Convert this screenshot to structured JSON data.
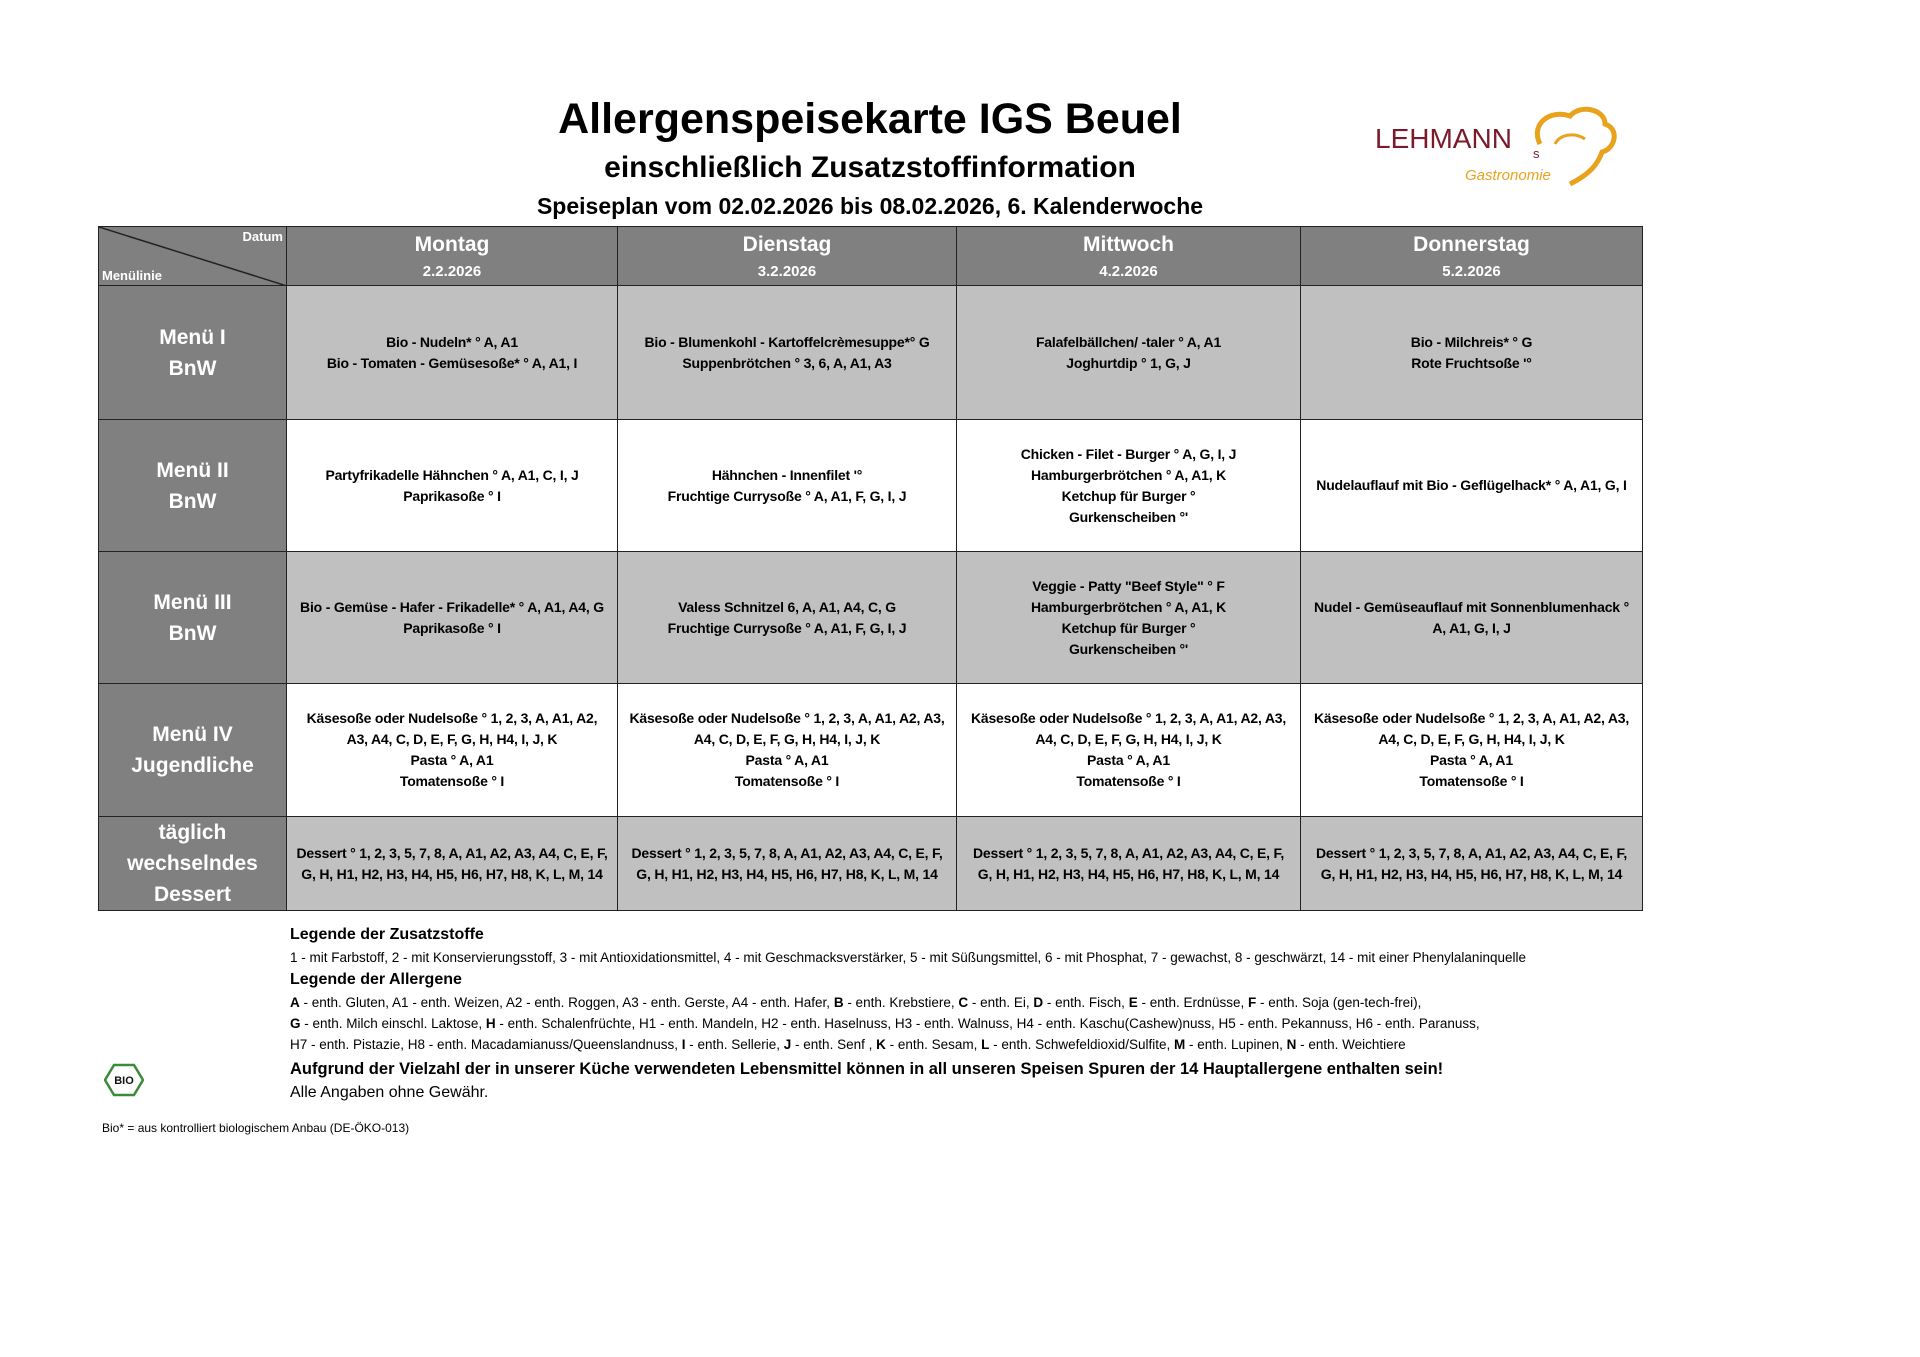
{
  "header": {
    "title": "Allergenspeisekarte IGS Beuel",
    "subtitle": "einschließlich Zusatzstoffinformation",
    "period": "Speiseplan vom 02.02.2026 bis 08.02.2026, 6. Kalenderwoche",
    "logo": {
      "text": "LEHMANN",
      "suffix": "s",
      "tagline": "Gastronomie",
      "colors": {
        "brand": "#7a1a2a",
        "accent": "#e8a21c"
      }
    }
  },
  "table": {
    "corner": {
      "top": "Datum",
      "bottom": "Menülinie"
    },
    "days": [
      {
        "name": "Montag",
        "date": "2.2.2026"
      },
      {
        "name": "Dienstag",
        "date": "3.2.2026"
      },
      {
        "name": "Mittwoch",
        "date": "4.2.2026"
      },
      {
        "name": "Donnerstag",
        "date": "5.2.2026"
      }
    ],
    "rows": [
      {
        "label": [
          "Menü I",
          "BnW"
        ],
        "cells": [
          [
            "Bio - Nudeln* ° A, A1",
            "Bio - Tomaten - Gemüsesoße* ° A, A1, I"
          ],
          [
            "Bio - Blumenkohl - Kartoffelcrèmesuppe*° G",
            "Suppenbrötchen ° 3, 6, A, A1, A3"
          ],
          [
            "Falafelbällchen/ -taler ° A, A1",
            "Joghurtdip ° 1, G, J"
          ],
          [
            "Bio - Milchreis* ° G",
            "Rote Fruchtsoße '°"
          ]
        ]
      },
      {
        "label": [
          "Menü II",
          "BnW"
        ],
        "cells": [
          [
            "Partyfrikadelle Hähnchen ° A, A1, C, I, J",
            "Paprikasoße ° I"
          ],
          [
            "Hähnchen - Innenfilet '°",
            "Fruchtige Currysoße ° A, A1, F, G, I, J"
          ],
          [
            "Chicken - Filet - Burger ° A, G, I, J",
            "Hamburgerbrötchen ° A, A1, K",
            "Ketchup für Burger °",
            "Gurkenscheiben °'"
          ],
          [
            "Nudelauflauf mit Bio - Geflügelhack* ° A, A1, G, I"
          ]
        ]
      },
      {
        "label": [
          "Menü III",
          "BnW"
        ],
        "cells": [
          [
            "Bio - Gemüse - Hafer - Frikadelle* ° A, A1, A4, G",
            "Paprikasoße ° I"
          ],
          [
            "Valess Schnitzel 6, A, A1, A4, C, G",
            "Fruchtige Currysoße ° A, A1, F, G, I, J"
          ],
          [
            "Veggie - Patty \"Beef Style\" ° F",
            "Hamburgerbrötchen ° A, A1, K",
            "Ketchup für Burger °",
            "Gurkenscheiben °'"
          ],
          [
            "Nudel - Gemüseauflauf mit Sonnenblumenhack °",
            "A, A1, G, I, J"
          ]
        ]
      },
      {
        "label": [
          "Menü IV",
          "Jugendliche"
        ],
        "cells": [
          [
            "Käsesoße oder Nudelsoße ° 1, 2, 3, A, A1, A2,",
            "A3, A4, C, D, E, F, G, H, H4, I, J, K",
            "Pasta ° A, A1",
            "Tomatensoße ° I"
          ],
          [
            "Käsesoße oder Nudelsoße ° 1, 2, 3, A, A1, A2, A3,",
            "A4, C, D, E, F, G, H, H4, I, J, K",
            "Pasta ° A, A1",
            "Tomatensoße ° I"
          ],
          [
            "Käsesoße oder Nudelsoße ° 1, 2, 3, A, A1, A2, A3,",
            "A4, C, D, E, F, G, H, H4, I, J, K",
            "Pasta ° A, A1",
            "Tomatensoße ° I"
          ],
          [
            "Käsesoße oder Nudelsoße ° 1, 2, 3, A, A1, A2, A3,",
            "A4, C, D, E, F, G, H, H4, I, J, K",
            "Pasta ° A, A1",
            "Tomatensoße ° I"
          ]
        ]
      },
      {
        "label": [
          "täglich",
          "wechselndes",
          "Dessert"
        ],
        "cells": [
          [
            "Dessert ° 1, 2, 3, 5, 7, 8, A, A1, A2, A3, A4, C, E, F,",
            "G, H, H1, H2, H3, H4, H5, H6, H7, H8, K, L, M, 14"
          ],
          [
            "Dessert ° 1, 2, 3, 5, 7, 8, A, A1, A2, A3, A4, C, E, F,",
            "G, H, H1, H2, H3, H4, H5, H6, H7, H8, K, L, M, 14"
          ],
          [
            "Dessert ° 1, 2, 3, 5, 7, 8, A, A1, A2, A3, A4, C, E, F,",
            "G, H, H1, H2, H3, H4, H5, H6, H7, H8, K, L, M, 14"
          ],
          [
            "Dessert ° 1, 2, 3, 5, 7, 8, A, A1, A2, A3, A4, C, E, F,",
            "G, H, H1, H2, H3, H4, H5, H6, H7, H8, K, L, M, 14"
          ]
        ]
      }
    ],
    "colors": {
      "header": "#808080",
      "grey_row": "#c0c0c0",
      "white_row": "#ffffff"
    }
  },
  "legend": {
    "additives_title": "Legende der Zusatzstoffe",
    "additives": "1 - mit Farbstoff, 2 - mit Konservierungsstoff, 3 - mit Antioxidationsmittel, 4 - mit Geschmacksverstärker, 5 - mit Süßungsmittel, 6 - mit Phosphat, 7 - gewachst, 8 - geschwärzt, 14 - mit einer Phenylalaninquelle",
    "allergens_title": "Legende der Allergene",
    "allergen_lines": [
      [
        [
          "A",
          true
        ],
        [
          " - enth. Gluten, A1 - enth. Weizen, A2 - enth. Roggen, A3 - enth. Gerste, A4 - enth. Hafer, ",
          false
        ],
        [
          "B",
          true
        ],
        [
          " - enth. Krebstiere, ",
          false
        ],
        [
          "C",
          true
        ],
        [
          " - enth. Ei, ",
          false
        ],
        [
          "D",
          true
        ],
        [
          " - enth. Fisch, ",
          false
        ],
        [
          "E",
          true
        ],
        [
          " - enth. Erdnüsse, ",
          false
        ],
        [
          "F",
          true
        ],
        [
          " - enth. Soja (gen-tech-frei),",
          false
        ]
      ],
      [
        [
          "G",
          true
        ],
        [
          " - enth. Milch einschl. Laktose, ",
          false
        ],
        [
          "H",
          true
        ],
        [
          " - enth. Schalenfrüchte, H1 - enth. Mandeln, H2 - enth. Haselnuss, H3 - enth. Walnuss, H4 - enth. Kaschu(Cashew)nuss, H5 - enth. Pekannuss, H6 - enth. Paranuss,",
          false
        ]
      ],
      [
        [
          "H7 - enth. Pistazie, H8 - enth. Macadamianuss/Queenslandnuss, ",
          false
        ],
        [
          "I",
          true
        ],
        [
          " - enth. Sellerie, ",
          false
        ],
        [
          "J",
          true
        ],
        [
          " - enth. Senf , ",
          false
        ],
        [
          "K",
          true
        ],
        [
          " - enth. Sesam, ",
          false
        ],
        [
          "L",
          true
        ],
        [
          " - enth. Schwefeldioxid/Sulfite, ",
          false
        ],
        [
          "M",
          true
        ],
        [
          " - enth. Lupinen, ",
          false
        ],
        [
          "N",
          true
        ],
        [
          " - enth. Weichtiere",
          false
        ]
      ]
    ],
    "warning": "Aufgrund der Vielzahl der in unserer Küche verwendeten Lebensmittel können in all unseren Speisen Spuren der 14 Hauptallergene enthalten sein!",
    "disclaimer": "Alle Angaben ohne Gewähr."
  },
  "bio": {
    "logo_text": "BIO",
    "footnote": "Bio* = aus kontrolliert biologischem Anbau (DE-ÖKO-013)"
  }
}
